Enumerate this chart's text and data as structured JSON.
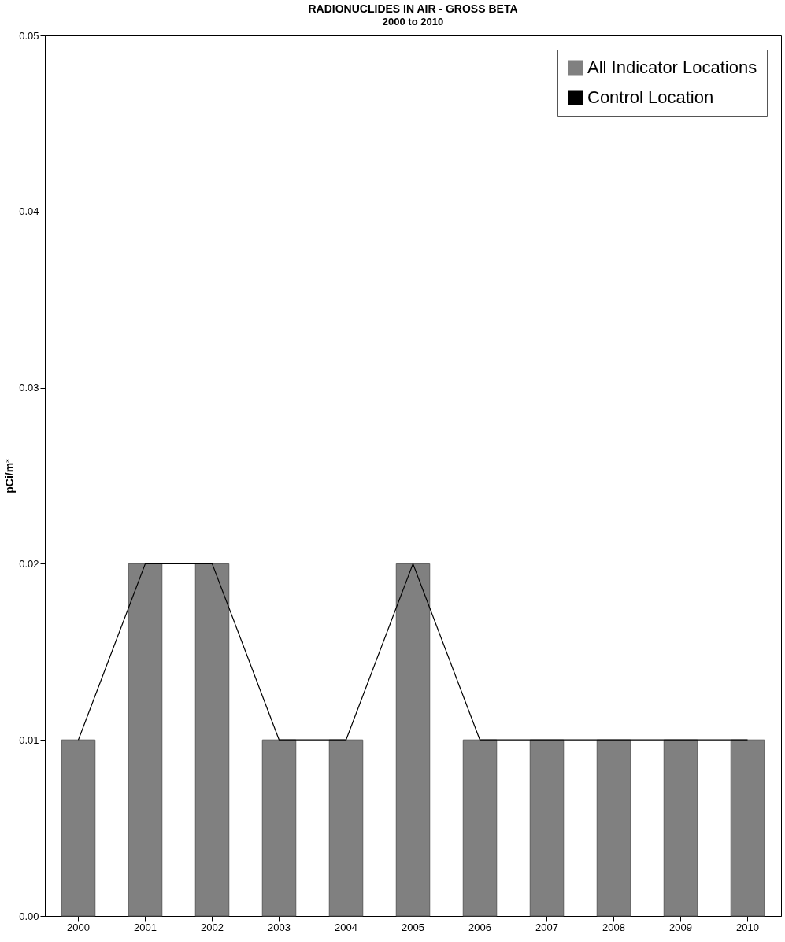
{
  "chart_data": {
    "type": "bar",
    "title": "RADIONUCLIDES IN AIR - GROSS BETA",
    "subtitle": "2000 to 2010",
    "ylabel": "pCi/m³",
    "categories": [
      "2000",
      "2001",
      "2002",
      "2003",
      "2004",
      "2005",
      "2006",
      "2007",
      "2008",
      "2009",
      "2010"
    ],
    "series": [
      {
        "name": "All Indicator Locations",
        "color": "#808080",
        "values": [
          0.01,
          0.02,
          0.02,
          0.01,
          0.01,
          0.02,
          0.01,
          0.01,
          0.01,
          0.01,
          0.01
        ]
      },
      {
        "name": "Control Location",
        "type": "line",
        "color": "#000000",
        "values": [
          0.01,
          0.02,
          0.02,
          0.01,
          0.01,
          0.02,
          0.01,
          0.01,
          0.01,
          0.01,
          0.01
        ]
      }
    ],
    "ylim": [
      0,
      0.05
    ],
    "yticks": [
      {
        "value": 0,
        "label": "0.00"
      },
      {
        "value": 0.01,
        "label": "0.01"
      },
      {
        "value": 0.02,
        "label": "0.02"
      },
      {
        "value": 0.03,
        "label": "0.03"
      },
      {
        "value": 0.04,
        "label": "0.04"
      },
      {
        "value": 0.05,
        "label": "0.05"
      }
    ],
    "grid": false,
    "legend": "top right",
    "marker": "none",
    "line_style": "solid"
  }
}
